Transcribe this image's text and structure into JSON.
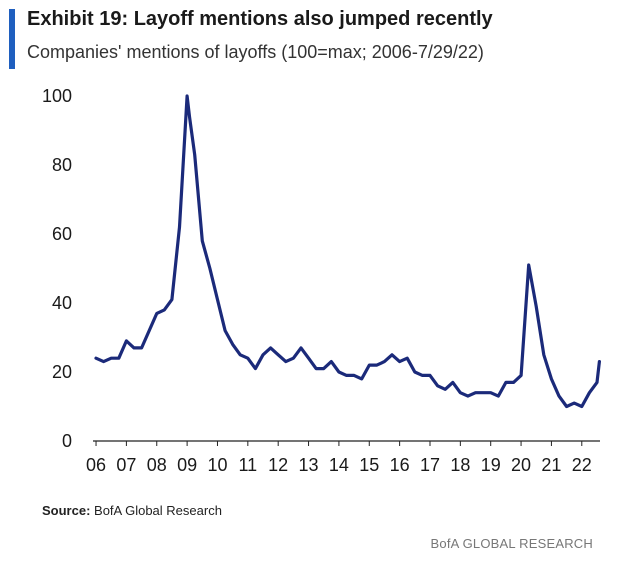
{
  "header": {
    "title": "Exhibit 19: Layoff mentions also jumped recently",
    "subtitle": "Companies' mentions of layoffs (100=max; 2006-7/29/22)"
  },
  "footer": {
    "source_label": "Source:",
    "source_text": " BofA Global Research",
    "brand": "BofA GLOBAL RESEARCH"
  },
  "colors": {
    "accent": "#1f5fbf",
    "line": "#1b2a7a",
    "axis": "#222222"
  },
  "chart_data": {
    "type": "line",
    "title": "Exhibit 19: Layoff mentions also jumped recently",
    "subtitle": "Companies' mentions of layoffs (100=max; 2006-7/29/22)",
    "xlabel": "",
    "ylabel": "",
    "ylim": [
      0,
      100
    ],
    "yticks": [
      0,
      20,
      40,
      60,
      80,
      100
    ],
    "xticks": [
      2006,
      2007,
      2008,
      2009,
      2010,
      2011,
      2012,
      2013,
      2014,
      2015,
      2016,
      2017,
      2018,
      2019,
      2020,
      2021,
      2022
    ],
    "xtick_labels": [
      "06",
      "07",
      "08",
      "09",
      "10",
      "11",
      "12",
      "13",
      "14",
      "15",
      "16",
      "17",
      "18",
      "19",
      "20",
      "21",
      "22"
    ],
    "xlim": [
      2005.9,
      2022.6
    ],
    "grid": false,
    "legend": "none",
    "series": [
      {
        "x": [
          2006.0,
          2006.25,
          2006.5,
          2006.75,
          2007.0,
          2007.25,
          2007.5,
          2007.75,
          2008.0,
          2008.25,
          2008.5,
          2008.75,
          2009.0,
          2009.08,
          2009.25,
          2009.5,
          2009.75,
          2010.0,
          2010.25,
          2010.5,
          2010.75,
          2011.0,
          2011.25,
          2011.5,
          2011.75,
          2012.0,
          2012.25,
          2012.5,
          2012.75,
          2013.0,
          2013.25,
          2013.5,
          2013.75,
          2014.0,
          2014.25,
          2014.5,
          2014.75,
          2015.0,
          2015.25,
          2015.5,
          2015.75,
          2016.0,
          2016.25,
          2016.5,
          2016.75,
          2017.0,
          2017.25,
          2017.5,
          2017.75,
          2018.0,
          2018.25,
          2018.5,
          2018.75,
          2019.0,
          2019.25,
          2019.5,
          2019.75,
          2020.0,
          2020.25,
          2020.5,
          2020.75,
          2021.0,
          2021.25,
          2021.5,
          2021.75,
          2022.0,
          2022.25,
          2022.5,
          2022.58
        ],
        "y": [
          24,
          23,
          24,
          24,
          29,
          27,
          27,
          32,
          37,
          38,
          41,
          62,
          100,
          94,
          83,
          58,
          50,
          41,
          32,
          28,
          25,
          24,
          21,
          25,
          27,
          25,
          23,
          24,
          27,
          24,
          21,
          21,
          23,
          20,
          19,
          19,
          18,
          22,
          22,
          23,
          25,
          23,
          24,
          20,
          19,
          19,
          16,
          15,
          17,
          14,
          13,
          14,
          14,
          14,
          13,
          17,
          17,
          19,
          51,
          39,
          25,
          18,
          13,
          10,
          11,
          10,
          14,
          17,
          23
        ]
      }
    ]
  }
}
